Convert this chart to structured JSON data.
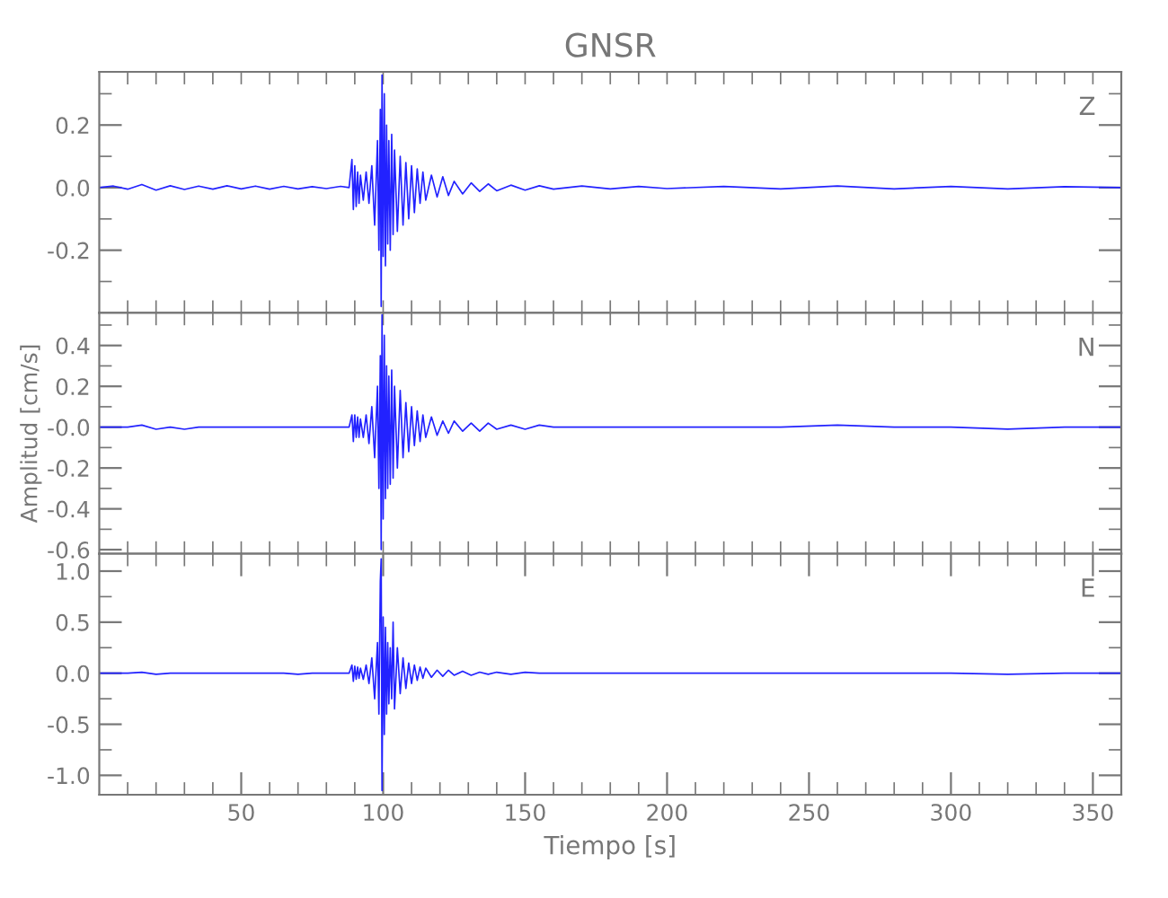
{
  "chart_data": [
    {
      "type": "line",
      "title": "GNSR",
      "annotations": [
        "Z"
      ],
      "tick_labels": "y",
      "grid": false,
      "legend": false,
      "xlim": [
        0,
        360
      ],
      "xticks": [
        {
          "value": 10,
          "label": null
        },
        {
          "value": 20,
          "label": null
        },
        {
          "value": 30,
          "label": null
        },
        {
          "value": 40,
          "label": null
        },
        {
          "value": 50,
          "label": null
        },
        {
          "value": 60,
          "label": null
        },
        {
          "value": 70,
          "label": null
        },
        {
          "value": 80,
          "label": null
        },
        {
          "value": 90,
          "label": null
        },
        {
          "value": 100,
          "label": null
        },
        {
          "value": 110,
          "label": null
        },
        {
          "value": 120,
          "label": null
        },
        {
          "value": 130,
          "label": null
        },
        {
          "value": 140,
          "label": null
        },
        {
          "value": 150,
          "label": null
        },
        {
          "value": 160,
          "label": null
        },
        {
          "value": 170,
          "label": null
        },
        {
          "value": 180,
          "label": null
        },
        {
          "value": 190,
          "label": null
        },
        {
          "value": 200,
          "label": null
        },
        {
          "value": 210,
          "label": null
        },
        {
          "value": 220,
          "label": null
        },
        {
          "value": 230,
          "label": null
        },
        {
          "value": 240,
          "label": null
        },
        {
          "value": 250,
          "label": null
        },
        {
          "value": 260,
          "label": null
        },
        {
          "value": 270,
          "label": null
        },
        {
          "value": 280,
          "label": null
        },
        {
          "value": 290,
          "label": null
        },
        {
          "value": 300,
          "label": null
        },
        {
          "value": 310,
          "label": null
        },
        {
          "value": 320,
          "label": null
        },
        {
          "value": 330,
          "label": null
        },
        {
          "value": 340,
          "label": null
        },
        {
          "value": 350,
          "label": null
        }
      ],
      "ylim": [
        -0.4,
        0.37
      ],
      "yticks": [
        {
          "value": -0.3,
          "label": null
        },
        {
          "value": -0.2,
          "label": "-0.2"
        },
        {
          "value": -0.1,
          "label": null
        },
        {
          "value": 0.0,
          "label": "0.0"
        },
        {
          "value": 0.1,
          "label": null
        },
        {
          "value": 0.2,
          "label": "0.2"
        },
        {
          "value": 0.3,
          "label": null
        }
      ],
      "x": [
        0,
        5,
        10,
        15,
        20,
        25,
        30,
        35,
        40,
        45,
        50,
        55,
        60,
        65,
        70,
        75,
        80,
        85,
        88,
        89,
        89.5,
        90,
        90.5,
        91,
        91.5,
        92,
        93,
        94,
        95,
        96,
        97,
        98,
        98.5,
        99,
        99.3,
        99.6,
        100,
        100.4,
        100.8,
        101.2,
        101.6,
        102,
        102.5,
        103,
        103.5,
        104,
        105,
        106,
        107,
        108,
        109,
        110,
        111,
        112,
        113,
        114,
        115,
        117,
        119,
        121,
        123,
        125,
        128,
        131,
        134,
        137,
        140,
        145,
        150,
        155,
        160,
        170,
        180,
        190,
        200,
        220,
        240,
        260,
        280,
        300,
        320,
        340,
        360
      ],
      "series": [
        {
          "color": "#2222ff",
          "values": [
            0.0,
            0.005,
            -0.005,
            0.01,
            -0.008,
            0.006,
            -0.006,
            0.005,
            -0.005,
            0.006,
            -0.004,
            0.005,
            -0.005,
            0.004,
            -0.004,
            0.003,
            -0.003,
            0.004,
            0.0,
            0.09,
            -0.07,
            0.07,
            -0.06,
            0.05,
            -0.05,
            0.04,
            -0.04,
            0.05,
            -0.05,
            0.07,
            -0.12,
            0.15,
            -0.2,
            0.25,
            -0.38,
            0.36,
            -0.22,
            0.3,
            -0.25,
            0.2,
            -0.18,
            0.15,
            -0.2,
            0.17,
            -0.15,
            0.12,
            -0.14,
            0.1,
            -0.12,
            0.08,
            -0.1,
            0.07,
            -0.08,
            0.06,
            -0.05,
            0.05,
            -0.04,
            0.04,
            -0.03,
            0.035,
            -0.025,
            0.02,
            -0.02,
            0.015,
            -0.012,
            0.012,
            -0.01,
            0.008,
            -0.008,
            0.006,
            -0.005,
            0.005,
            -0.004,
            0.004,
            -0.003,
            0.004,
            -0.004,
            0.005,
            -0.004,
            0.004,
            -0.004,
            0.003,
            0.0
          ]
        }
      ]
    },
    {
      "type": "line",
      "ylabel": "Amplitud [cm/s]",
      "annotations": [
        "N"
      ],
      "tick_labels": "y",
      "grid": false,
      "legend": false,
      "xlim": [
        0,
        360
      ],
      "xticks": [
        {
          "value": 10,
          "label": null
        },
        {
          "value": 20,
          "label": null
        },
        {
          "value": 30,
          "label": null
        },
        {
          "value": 40,
          "label": null
        },
        {
          "value": 50,
          "label": null
        },
        {
          "value": 60,
          "label": null
        },
        {
          "value": 70,
          "label": null
        },
        {
          "value": 80,
          "label": null
        },
        {
          "value": 90,
          "label": null
        },
        {
          "value": 100,
          "label": null
        },
        {
          "value": 110,
          "label": null
        },
        {
          "value": 120,
          "label": null
        },
        {
          "value": 130,
          "label": null
        },
        {
          "value": 140,
          "label": null
        },
        {
          "value": 150,
          "label": null
        },
        {
          "value": 160,
          "label": null
        },
        {
          "value": 170,
          "label": null
        },
        {
          "value": 180,
          "label": null
        },
        {
          "value": 190,
          "label": null
        },
        {
          "value": 200,
          "label": null
        },
        {
          "value": 210,
          "label": null
        },
        {
          "value": 220,
          "label": null
        },
        {
          "value": 230,
          "label": null
        },
        {
          "value": 240,
          "label": null
        },
        {
          "value": 250,
          "label": null
        },
        {
          "value": 260,
          "label": null
        },
        {
          "value": 270,
          "label": null
        },
        {
          "value": 280,
          "label": null
        },
        {
          "value": 290,
          "label": null
        },
        {
          "value": 300,
          "label": null
        },
        {
          "value": 310,
          "label": null
        },
        {
          "value": 320,
          "label": null
        },
        {
          "value": 330,
          "label": null
        },
        {
          "value": 340,
          "label": null
        },
        {
          "value": 350,
          "label": null
        }
      ],
      "ylim": [
        -0.62,
        0.56
      ],
      "yticks": [
        {
          "value": -0.6,
          "label": "-0.6"
        },
        {
          "value": -0.5,
          "label": null
        },
        {
          "value": -0.4,
          "label": "-0.4"
        },
        {
          "value": -0.3,
          "label": null
        },
        {
          "value": -0.2,
          "label": "-0.2"
        },
        {
          "value": -0.1,
          "label": null
        },
        {
          "value": 0.0,
          "label": "-0.0"
        },
        {
          "value": 0.1,
          "label": null
        },
        {
          "value": 0.2,
          "label": "0.2"
        },
        {
          "value": 0.3,
          "label": null
        },
        {
          "value": 0.4,
          "label": "0.4"
        },
        {
          "value": 0.5,
          "label": null
        }
      ],
      "x": [
        0,
        5,
        10,
        15,
        20,
        25,
        30,
        35,
        40,
        45,
        50,
        55,
        60,
        65,
        70,
        75,
        80,
        85,
        88,
        89,
        89.5,
        90,
        90.5,
        91,
        91.5,
        92,
        93,
        94,
        95,
        96,
        97,
        98,
        98.5,
        99,
        99.3,
        99.6,
        100,
        100.4,
        100.8,
        101.2,
        101.6,
        102,
        102.5,
        103,
        103.5,
        104,
        105,
        106,
        107,
        108,
        109,
        110,
        111,
        112,
        113,
        114,
        115,
        117,
        119,
        121,
        123,
        125,
        128,
        131,
        134,
        137,
        140,
        145,
        150,
        155,
        160,
        170,
        180,
        190,
        200,
        220,
        240,
        260,
        280,
        300,
        320,
        340,
        360
      ],
      "series": [
        {
          "color": "#2222ff",
          "values": [
            0.0,
            0.0,
            0.0,
            0.01,
            -0.01,
            0.0,
            -0.01,
            0.0,
            0.0,
            0.0,
            0.0,
            0.0,
            0.0,
            0.0,
            0.0,
            0.0,
            0.0,
            0.0,
            0.0,
            0.06,
            -0.07,
            0.06,
            -0.05,
            0.05,
            -0.05,
            0.04,
            -0.05,
            0.06,
            -0.08,
            0.1,
            -0.15,
            0.2,
            -0.3,
            0.35,
            -0.6,
            0.55,
            -0.45,
            0.45,
            -0.35,
            0.3,
            -0.3,
            0.25,
            -0.28,
            0.28,
            -0.25,
            0.2,
            -0.2,
            0.18,
            -0.15,
            0.12,
            -0.12,
            0.1,
            -0.09,
            0.08,
            -0.07,
            0.06,
            -0.05,
            0.05,
            -0.04,
            0.03,
            -0.03,
            0.03,
            -0.02,
            0.02,
            -0.02,
            0.02,
            -0.01,
            0.01,
            -0.01,
            0.01,
            0.0,
            0.0,
            0.0,
            0.0,
            0.0,
            0.0,
            0.0,
            0.01,
            0.0,
            0.0,
            -0.01,
            0.0,
            0.0
          ]
        }
      ]
    },
    {
      "type": "line",
      "xlabel": "Tiempo [s]",
      "annotations": [
        "E"
      ],
      "grid": false,
      "legend": false,
      "xlim": [
        0,
        360
      ],
      "xticks": [
        {
          "value": 10,
          "label": null
        },
        {
          "value": 20,
          "label": null
        },
        {
          "value": 30,
          "label": null
        },
        {
          "value": 40,
          "label": null
        },
        50,
        {
          "value": 60,
          "label": null
        },
        {
          "value": 70,
          "label": null
        },
        {
          "value": 80,
          "label": null
        },
        {
          "value": 90,
          "label": null
        },
        100,
        {
          "value": 110,
          "label": null
        },
        {
          "value": 120,
          "label": null
        },
        {
          "value": 130,
          "label": null
        },
        {
          "value": 140,
          "label": null
        },
        150,
        {
          "value": 160,
          "label": null
        },
        {
          "value": 170,
          "label": null
        },
        {
          "value": 180,
          "label": null
        },
        {
          "value": 190,
          "label": null
        },
        200,
        {
          "value": 210,
          "label": null
        },
        {
          "value": 220,
          "label": null
        },
        {
          "value": 230,
          "label": null
        },
        {
          "value": 240,
          "label": null
        },
        250,
        {
          "value": 260,
          "label": null
        },
        {
          "value": 270,
          "label": null
        },
        {
          "value": 280,
          "label": null
        },
        {
          "value": 290,
          "label": null
        },
        300,
        {
          "value": 310,
          "label": null
        },
        {
          "value": 320,
          "label": null
        },
        {
          "value": 330,
          "label": null
        },
        {
          "value": 340,
          "label": null
        },
        350
      ],
      "ylim": [
        -1.19,
        1.17
      ],
      "yticks": [
        {
          "value": -1.0,
          "label": "-1.0"
        },
        {
          "value": -0.75,
          "label": null
        },
        {
          "value": -0.5,
          "label": "-0.5"
        },
        {
          "value": -0.25,
          "label": null
        },
        {
          "value": 0.0,
          "label": "0.0"
        },
        {
          "value": 0.25,
          "label": null
        },
        {
          "value": 0.5,
          "label": "0.5"
        },
        {
          "value": 0.75,
          "label": null
        },
        {
          "value": 1.0,
          "label": "1.0"
        }
      ],
      "x": [
        0,
        5,
        10,
        15,
        20,
        25,
        30,
        35,
        40,
        45,
        50,
        55,
        60,
        65,
        70,
        75,
        80,
        85,
        88,
        89,
        89.5,
        90,
        90.5,
        91,
        91.5,
        92,
        93,
        94,
        95,
        96,
        97,
        98,
        98.5,
        99,
        99.3,
        99.6,
        100,
        100.4,
        100.8,
        101.2,
        101.6,
        102,
        102.5,
        103,
        103.5,
        104,
        105,
        106,
        107,
        108,
        109,
        110,
        111,
        112,
        113,
        114,
        115,
        117,
        119,
        121,
        123,
        125,
        128,
        131,
        134,
        137,
        140,
        145,
        150,
        155,
        160,
        170,
        180,
        190,
        200,
        220,
        240,
        260,
        280,
        300,
        320,
        340,
        360
      ],
      "series": [
        {
          "color": "#2222ff",
          "values": [
            0.0,
            0.0,
            0.0,
            0.01,
            -0.01,
            0.0,
            0.0,
            0.0,
            0.0,
            0.0,
            0.0,
            0.0,
            0.0,
            0.0,
            -0.01,
            0.0,
            0.0,
            0.0,
            0.0,
            0.08,
            -0.08,
            0.07,
            -0.06,
            0.06,
            -0.05,
            0.05,
            -0.06,
            0.08,
            -0.1,
            0.15,
            -0.25,
            0.3,
            -0.4,
            0.9,
            1.12,
            -1.15,
            0.55,
            -0.6,
            0.45,
            -0.4,
            0.3,
            -0.3,
            0.25,
            -0.25,
            0.5,
            -0.35,
            0.25,
            -0.2,
            0.15,
            -0.15,
            0.1,
            -0.1,
            0.08,
            -0.07,
            0.06,
            -0.05,
            0.05,
            -0.04,
            0.03,
            -0.03,
            0.03,
            -0.02,
            0.02,
            -0.02,
            0.01,
            -0.01,
            0.01,
            -0.01,
            0.01,
            0.0,
            0.0,
            0.0,
            0.0,
            0.0,
            0.0,
            0.0,
            0.0,
            0.0,
            0.0,
            0.0,
            -0.01,
            0.0,
            0.0
          ]
        }
      ]
    }
  ]
}
